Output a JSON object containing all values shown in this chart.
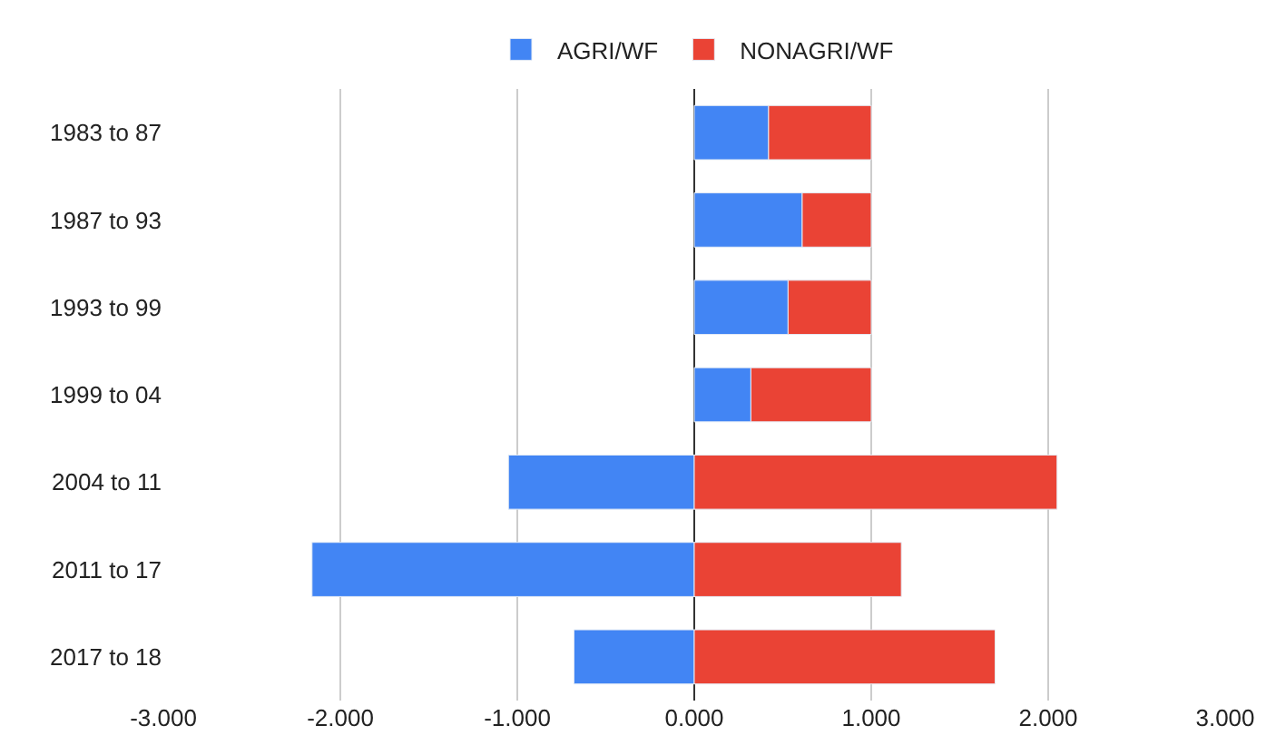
{
  "chart_data": {
    "type": "bar",
    "orientation": "horizontal",
    "stacked": true,
    "categories": [
      "1983 to 87",
      "1987 to 93",
      "1993 to 99",
      "1999 to 04",
      "2004 to 11",
      "2011 to 17",
      "2017 to 18"
    ],
    "series": [
      {
        "name": "AGRI/WF",
        "color": "#4285f4",
        "values": [
          0.42,
          0.61,
          0.53,
          0.32,
          -1.05,
          -2.16,
          -0.68
        ]
      },
      {
        "name": "NONAGRI/WF",
        "color": "#ea4335",
        "values": [
          0.58,
          0.39,
          0.47,
          0.68,
          2.05,
          1.17,
          1.7
        ]
      }
    ],
    "xlim": [
      -3,
      3
    ],
    "xticks": [
      {
        "value": -3,
        "label": "-3.000"
      },
      {
        "value": -2,
        "label": "-2.000"
      },
      {
        "value": -1,
        "label": "-1.000"
      },
      {
        "value": 0,
        "label": "0.000"
      },
      {
        "value": 1,
        "label": "1.000"
      },
      {
        "value": 2,
        "label": "2.000"
      },
      {
        "value": 3,
        "label": "3.000"
      }
    ],
    "grid": "x",
    "legend": "top"
  }
}
